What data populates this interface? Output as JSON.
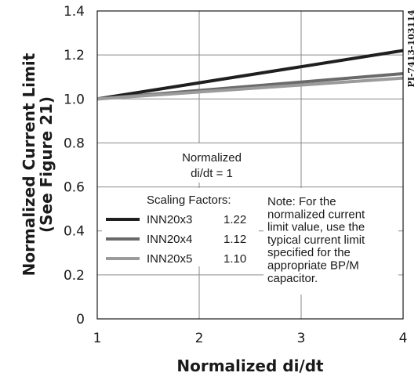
{
  "chart_data": {
    "type": "line",
    "xlabel": "Normalized di/dt",
    "ylabel_lines": [
      "Normalized Current Limit",
      "(See Figure 21)"
    ],
    "xlim": [
      1,
      4
    ],
    "ylim": [
      0,
      1.4
    ],
    "x_ticks": [
      1,
      2,
      3,
      4
    ],
    "y_ticks": [
      "0",
      "0.2",
      "0.4",
      "0.6",
      "0.8",
      "1.0",
      "1.2",
      "1.4"
    ],
    "grid": true,
    "part_code": "PI-7413-103114",
    "series": [
      {
        "name": "INN20x3",
        "factor": "1.22",
        "color": "#1f1f1f",
        "x": [
          1,
          4
        ],
        "values": [
          1.0,
          1.22
        ]
      },
      {
        "name": "INN20x4",
        "factor": "1.12",
        "color": "#6a6a6a",
        "x": [
          1,
          4
        ],
        "values": [
          1.0,
          1.115
        ]
      },
      {
        "name": "INN20x5",
        "factor": "1.10",
        "color": "#9b9b9b",
        "x": [
          1,
          4
        ],
        "values": [
          1.0,
          1.095
        ]
      }
    ],
    "annotations": {
      "normalized_lines": [
        "Normalized",
        "di/dt = 1"
      ],
      "legend_title": "Scaling Factors:",
      "note_lines": [
        "Note: For the",
        "normalized current",
        "limit value, use the",
        "typical current limit",
        "specified for the",
        "appropriate BP/M",
        "capacitor."
      ]
    }
  }
}
